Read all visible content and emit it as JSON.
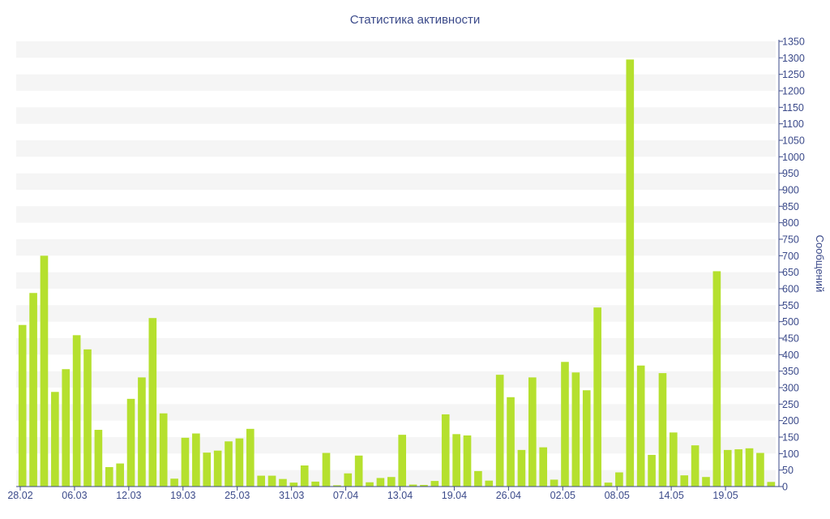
{
  "chart_data": {
    "type": "bar",
    "title": "Статистика активности",
    "ylabel": "Сообщений",
    "xlabel": "",
    "ylim": [
      0,
      1350
    ],
    "y_tick_step": 50,
    "y_axis_position": "right",
    "grid": "alternating horizontal bands",
    "bar_color": "#b5e02e",
    "band_color": "#f5f5f5",
    "axis_color": "#3b4a8a",
    "x_tick_labels": [
      "28.02",
      "06.03",
      "12.03",
      "19.03",
      "25.03",
      "31.03",
      "07.04",
      "13.04",
      "19.04",
      "26.04",
      "02.05",
      "08.05",
      "14.05",
      "19.05"
    ],
    "x_tick_indices": [
      0,
      5,
      10,
      15,
      20,
      25,
      30,
      35,
      40,
      45,
      50,
      55,
      60,
      65
    ],
    "values": [
      490,
      587,
      700,
      287,
      356,
      459,
      416,
      172,
      59,
      70,
      266,
      331,
      511,
      222,
      24,
      148,
      161,
      103,
      109,
      137,
      146,
      175,
      33,
      33,
      23,
      12,
      64,
      15,
      102,
      4,
      40,
      94,
      13,
      26,
      29,
      157,
      6,
      5,
      17,
      219,
      159,
      155,
      47,
      18,
      339,
      271,
      111,
      331,
      119,
      21,
      378,
      346,
      292,
      543,
      12,
      43,
      1295,
      367,
      96,
      344,
      164,
      34,
      125,
      29,
      653,
      111,
      113,
      116,
      102,
      14
    ]
  }
}
